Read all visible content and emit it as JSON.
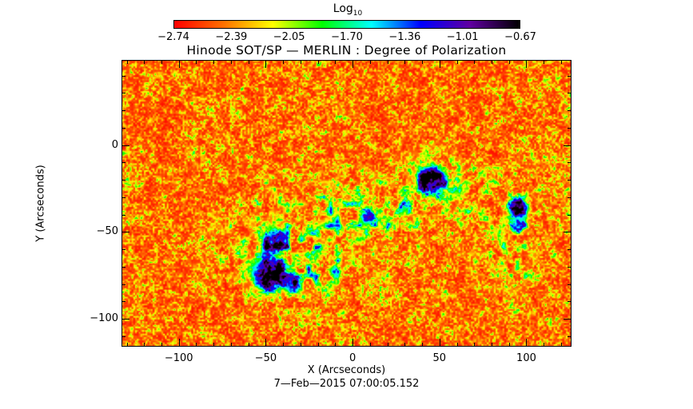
{
  "chart_data": {
    "type": "heatmap",
    "title": "Hinode SOT/SP — MERLIN : Degree of Polarization",
    "xlabel": "X (Arcseconds)",
    "ylabel": "Y (Arcseconds)",
    "date": "7—Feb—2015 07:00:05.152",
    "xlim": [
      -133,
      126
    ],
    "ylim": [
      -116,
      49
    ],
    "xticks": [
      -100,
      -50,
      0,
      50,
      100
    ],
    "yticks": [
      0,
      -50,
      -100
    ],
    "xtick_labels": [
      "−100",
      "−50",
      "0",
      "50",
      "100"
    ],
    "ytick_labels": [
      "0",
      "−50",
      "−100"
    ],
    "colorbar": {
      "label_base": "Log",
      "label_sub": "10",
      "range": [
        -2.74,
        -0.67
      ],
      "tick_labels": [
        "−2.74",
        "−2.39",
        "−2.05",
        "−1.70",
        "−1.36",
        "−1.01",
        "−0.67"
      ],
      "colors": [
        "#ff0000",
        "#ff7000",
        "#ffff00",
        "#00ff00",
        "#00ffff",
        "#0000ff",
        "#6000a0",
        "#000000"
      ]
    },
    "features": [
      {
        "x": -48,
        "y": -73,
        "strength": 1.0,
        "size": 9
      },
      {
        "x": -45,
        "y": -55,
        "strength": 0.8,
        "size": 6
      },
      {
        "x": 45,
        "y": -20,
        "strength": 1.0,
        "size": 7
      },
      {
        "x": 95,
        "y": -36,
        "strength": 0.9,
        "size": 5
      },
      {
        "x": 95,
        "y": -46,
        "strength": 0.7,
        "size": 4
      },
      {
        "x": 8,
        "y": -40,
        "strength": 0.6,
        "size": 4
      },
      {
        "x": -10,
        "y": -73,
        "strength": 0.5,
        "size": 3
      },
      {
        "x": -35,
        "y": -80,
        "strength": 0.6,
        "size": 5
      },
      {
        "x": 28,
        "y": -38,
        "strength": 0.4,
        "size": 3
      }
    ]
  }
}
